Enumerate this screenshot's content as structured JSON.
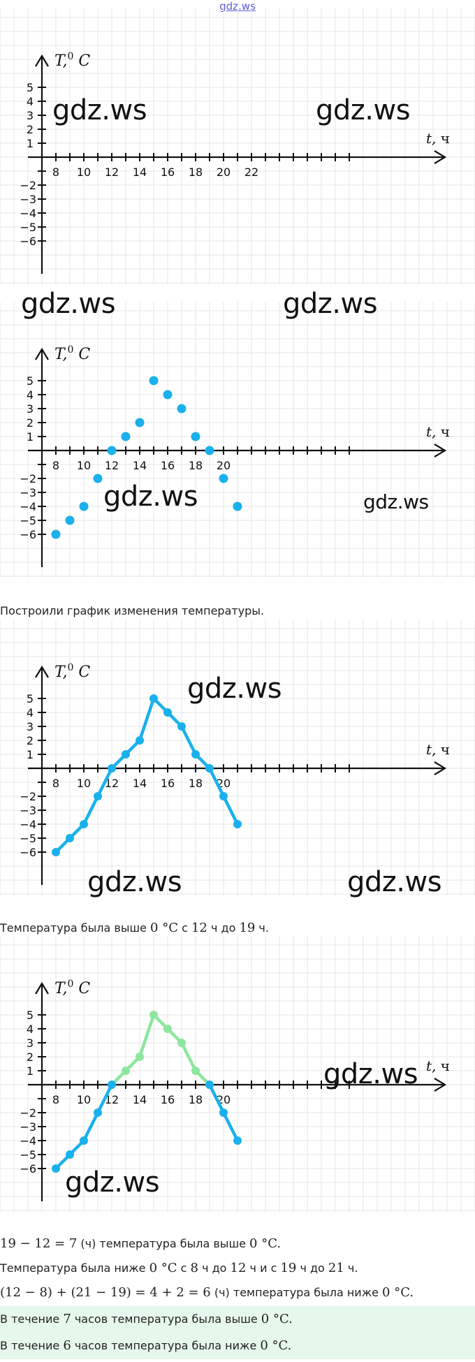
{
  "site_link": "gdz.ws",
  "watermark": "gdz.ws",
  "axis": {
    "y_label_main": "T",
    "y_label_sup": "0",
    "y_label_unit": "C",
    "x_label_main": "t",
    "x_label_unit": "ч",
    "y_ticks_pos": [
      "5",
      "4",
      "3",
      "2",
      "1"
    ],
    "y_ticks_neg": [
      "-2",
      "-3",
      "-4",
      "-5",
      "-6"
    ],
    "x_ticks_full": [
      "8",
      "10",
      "12",
      "14",
      "16",
      "18",
      "20",
      "22"
    ],
    "x_ticks_short": [
      "8",
      "10",
      "12",
      "14",
      "16",
      "18",
      "20"
    ]
  },
  "chart_data": [
    {
      "type": "line",
      "description": "empty coordinate axes",
      "x": [],
      "y": []
    },
    {
      "type": "scatter",
      "x": [
        8,
        9,
        10,
        11,
        12,
        13,
        14,
        15,
        16,
        17,
        18,
        19,
        20,
        21
      ],
      "y": [
        -6,
        -5,
        -4,
        -2,
        0,
        1,
        2,
        5,
        4,
        3,
        1,
        0,
        -2,
        -4
      ],
      "colors": {
        "point": "#1ab0ec"
      }
    },
    {
      "type": "line",
      "x": [
        8,
        9,
        10,
        11,
        12,
        13,
        14,
        15,
        16,
        17,
        18,
        19,
        20,
        21
      ],
      "y": [
        -6,
        -5,
        -4,
        -2,
        0,
        1,
        2,
        5,
        4,
        3,
        1,
        0,
        -2,
        -4
      ],
      "colors": {
        "line": "#1ab0ec"
      }
    },
    {
      "type": "line",
      "x": [
        8,
        9,
        10,
        11,
        12,
        13,
        14,
        15,
        16,
        17,
        18,
        19,
        20,
        21
      ],
      "y": [
        -6,
        -5,
        -4,
        -2,
        0,
        1,
        2,
        5,
        4,
        3,
        1,
        0,
        -2,
        -4
      ],
      "colors": {
        "below_zero": "#1ab0ec",
        "above_zero": "#8ee69e"
      }
    }
  ],
  "texts": {
    "t1": "Построили график изменения температуры.",
    "t2_a": "Температура была выше ",
    "t2_b": "0 °C",
    "t2_c": " с ",
    "t2_d": "12",
    "t2_e": " ч до ",
    "t2_f": "19",
    "t2_g": " ч.",
    "t3_a": "19 − 12 = 7",
    "t3_b": " (ч) температура была выше ",
    "t3_c": "0 °C.",
    "t4_a": "Температура была ниже ",
    "t4_b": "0 °C",
    "t4_c": " с ",
    "t4_d": "8",
    "t4_e": " ч до ",
    "t4_f": "12",
    "t4_g": " ч и с ",
    "t4_h": "19",
    "t4_i": " ч до ",
    "t4_j": "21",
    "t4_k": " ч.",
    "t5_a": "(12 − 8) + (21 − 19) = 4 + 2 = 6",
    "t5_b": " (ч) температура была ниже ",
    "t5_c": "0 °C.",
    "t6_a": "В течение ",
    "t6_b": "7",
    "t6_c": " часов температура была выше ",
    "t6_d": "0 °C.",
    "t7_a": "В течение ",
    "t7_b": "6",
    "t7_c": " часов температура была ниже ",
    "t7_d": "0 °C."
  },
  "colors": {
    "grid": "#e4e4e4",
    "axis": "#111111",
    "blue": "#1ab0ec",
    "green": "#8ee69e",
    "highlight": "#e6f7ec"
  }
}
